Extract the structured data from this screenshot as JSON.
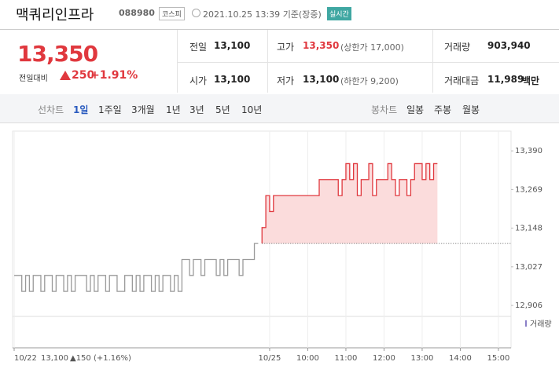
{
  "header": {
    "name": "맥쿼리인프라",
    "code": "088980",
    "market": "코스피",
    "datetime": "2021.10.25 13:39",
    "basis": "기준(장중)",
    "badge": "실시간"
  },
  "quote": {
    "price": "13,350",
    "change_label": "전일대비",
    "change": "250",
    "rate": "+1.91%"
  },
  "stats": {
    "rows": [
      [
        {
          "label": "전일",
          "value": "13,100"
        },
        {
          "label": "고가",
          "value": "13,350",
          "sub": "(상한가 17,000)"
        },
        {
          "label": "거래량",
          "value": "903,940"
        }
      ],
      [
        {
          "label": "시가",
          "value": "13,100"
        },
        {
          "label": "저가",
          "value": "13,100",
          "sub": "(하한가 9,200)"
        },
        {
          "label": "거래대금",
          "value": "11,989",
          "unit": "백만"
        }
      ]
    ]
  },
  "tabs": {
    "line_label": "선차트",
    "line": [
      "1일",
      "1주일",
      "3개월",
      "1년",
      "3년",
      "5년",
      "10년"
    ],
    "candle_label": "봉차트",
    "candle": [
      "일봉",
      "주봉",
      "월봉"
    ]
  },
  "chart_data": {
    "type": "line",
    "categories": [
      "10/22",
      null,
      null,
      null,
      null,
      null,
      null,
      null,
      null,
      null,
      null,
      null,
      null,
      null,
      null,
      null,
      null,
      null,
      null,
      null,
      null,
      null,
      null,
      null,
      null,
      null,
      null,
      null,
      null,
      null,
      null,
      null,
      null,
      null,
      null,
      null,
      null,
      null,
      null,
      null,
      null,
      null,
      null,
      null,
      null,
      null,
      null,
      null,
      null,
      null,
      null,
      null,
      null,
      null,
      null,
      null,
      null,
      null,
      null,
      null,
      null,
      null,
      null,
      null,
      null,
      null,
      null,
      "10/25",
      null,
      null,
      null,
      null,
      null,
      null,
      null,
      null,
      null,
      "10:00",
      null,
      null,
      null,
      null,
      null,
      null,
      null,
      null,
      null,
      "11:00",
      null,
      null,
      null,
      null,
      null,
      null,
      null,
      null,
      null,
      "12:00",
      null,
      null,
      null,
      null,
      null,
      null,
      null,
      null,
      null,
      "13:00",
      null,
      null,
      null,
      null,
      null,
      null,
      null,
      null,
      null,
      "14:00",
      null,
      null,
      null,
      null,
      null,
      null,
      null,
      null,
      null,
      "15:00",
      null,
      null,
      null
    ],
    "series": [
      {
        "color": "#9a9a9a",
        "values": [
          13000,
          13000,
          12950,
          13000,
          12950,
          13000,
          13000,
          12950,
          13000,
          13000,
          12950,
          13000,
          13000,
          12950,
          13000,
          12950,
          13000,
          13000,
          13000,
          12950,
          13000,
          12950,
          13000,
          13000,
          12950,
          13000,
          13000,
          12950,
          12950,
          13000,
          13000,
          12950,
          13000,
          12950,
          13000,
          13000,
          12950,
          13000,
          12950,
          13000,
          13000,
          12950,
          13000,
          12950,
          13050,
          13050,
          13000,
          13050,
          13050,
          13000,
          13050,
          13050,
          13050,
          13000,
          13050,
          13000,
          13050,
          13050,
          13050,
          13000,
          13050,
          13050,
          13050,
          13100,
          13100,
          null,
          null,
          null,
          null,
          null,
          null,
          null,
          null,
          null,
          null,
          null,
          null,
          null,
          null,
          null,
          null,
          null,
          null,
          null,
          null,
          null,
          null,
          null,
          null,
          null,
          null,
          null,
          null,
          null,
          null,
          null,
          null,
          null,
          null,
          null,
          null,
          null,
          null,
          null,
          null,
          null,
          null,
          null,
          null,
          null,
          null,
          null,
          null,
          null,
          null,
          null,
          null,
          null,
          null,
          null,
          null,
          null,
          null,
          null,
          null,
          null,
          null,
          null,
          null,
          null,
          null
        ]
      },
      {
        "color": "#e0383e",
        "fill": "#fbdcdc",
        "values": [
          null,
          null,
          null,
          null,
          null,
          null,
          null,
          null,
          null,
          null,
          null,
          null,
          null,
          null,
          null,
          null,
          null,
          null,
          null,
          null,
          null,
          null,
          null,
          null,
          null,
          null,
          null,
          null,
          null,
          null,
          null,
          null,
          null,
          null,
          null,
          null,
          null,
          null,
          null,
          null,
          null,
          null,
          null,
          null,
          null,
          null,
          null,
          null,
          null,
          null,
          null,
          null,
          null,
          null,
          null,
          null,
          null,
          null,
          null,
          null,
          null,
          null,
          null,
          null,
          null,
          13150,
          13250,
          13200,
          13250,
          13250,
          13250,
          13250,
          13250,
          13250,
          13250,
          13250,
          13250,
          13250,
          13250,
          13250,
          13300,
          13300,
          13300,
          13300,
          13300,
          13250,
          13300,
          13350,
          13300,
          13350,
          13250,
          13300,
          13300,
          13350,
          13250,
          13300,
          13300,
          13300,
          13350,
          13300,
          13250,
          13300,
          13300,
          13250,
          13300,
          13350,
          13350,
          13300,
          13350,
          13300,
          13350,
          13350,
          null,
          null,
          null,
          null,
          null,
          null,
          null,
          null,
          null,
          null,
          null,
          null,
          null,
          null,
          null,
          null,
          null,
          null,
          null
        ]
      }
    ],
    "baseline": 13100,
    "ylim": [
      12884,
      13415
    ],
    "yticks": [
      {
        "value": 13390,
        "label": "13,390"
      },
      {
        "value": 13269,
        "label": "13,269"
      },
      {
        "value": 13148,
        "label": "13,148"
      },
      {
        "value": 13027,
        "label": "13,027"
      },
      {
        "value": 12906,
        "label": "12,906"
      }
    ],
    "volume_label": "거래량",
    "footer": {
      "price": "13,100",
      "change": "▲150 (+1.16%)"
    }
  }
}
